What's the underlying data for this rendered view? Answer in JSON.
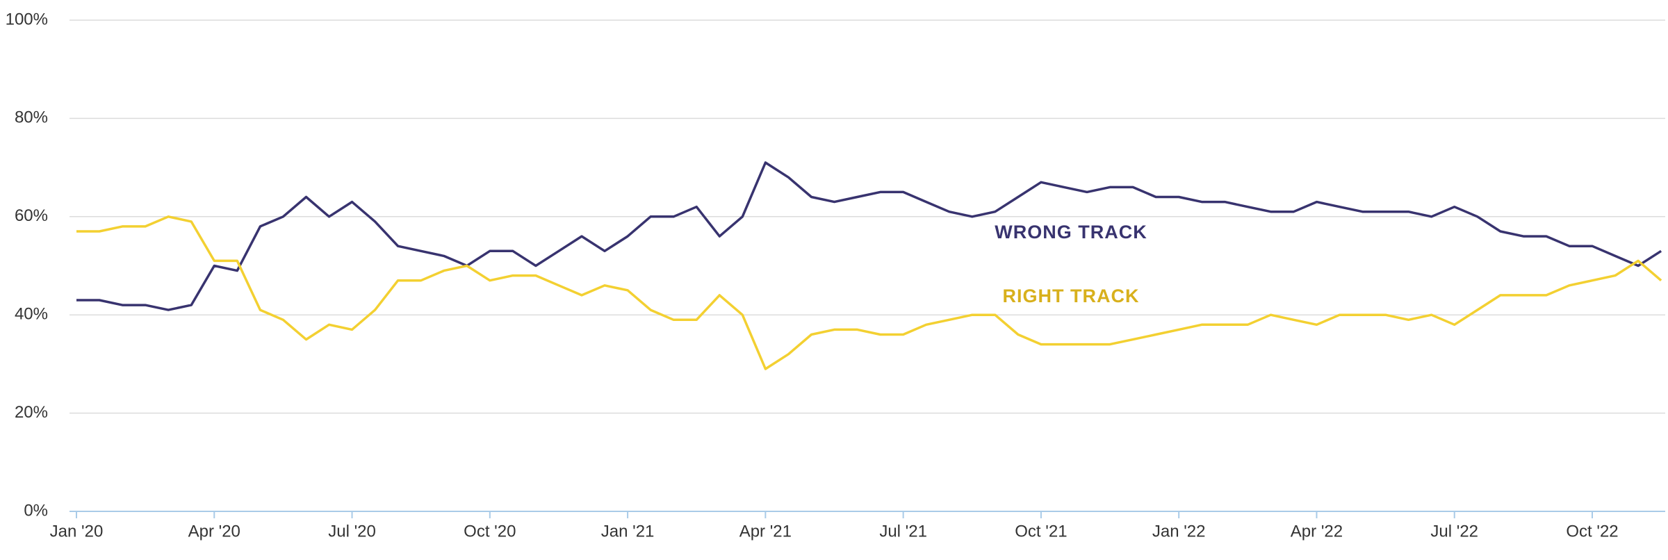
{
  "chart_data": {
    "type": "line",
    "categories": [
      "Jan '20",
      null,
      null,
      null,
      null,
      null,
      "Apr '20",
      null,
      null,
      null,
      null,
      null,
      "Jul '20",
      null,
      null,
      null,
      null,
      null,
      "Oct '20",
      null,
      null,
      null,
      null,
      null,
      "Jan '21",
      null,
      null,
      null,
      null,
      null,
      "Apr '21",
      null,
      null,
      null,
      null,
      null,
      "Jul '21",
      null,
      null,
      null,
      null,
      null,
      "Oct '21",
      null,
      null,
      null,
      null,
      null,
      "Jan '22",
      null,
      null,
      null,
      null,
      null,
      "Apr '22",
      null,
      null,
      null,
      null,
      null,
      "Jul '22",
      null,
      null,
      null,
      null,
      null,
      "Oct '22",
      null,
      null,
      null
    ],
    "series": [
      {
        "name": "WRONG TRACK",
        "color": "#38336f",
        "values": [
          43,
          43,
          42,
          42,
          41,
          42,
          50,
          49,
          58,
          60,
          64,
          60,
          63,
          59,
          54,
          53,
          52,
          50,
          53,
          53,
          50,
          53,
          56,
          53,
          56,
          60,
          60,
          62,
          56,
          60,
          71,
          68,
          64,
          63,
          64,
          65,
          65,
          63,
          61,
          60,
          61,
          64,
          67,
          66,
          65,
          66,
          66,
          64,
          64,
          63,
          63,
          62,
          61,
          61,
          63,
          62,
          61,
          61,
          61,
          60,
          62,
          60,
          57,
          56,
          56,
          54,
          54,
          52,
          50,
          53
        ]
      },
      {
        "name": "RIGHT TRACK",
        "color": "#f3d031",
        "values": [
          57,
          57,
          58,
          58,
          60,
          59,
          51,
          51,
          41,
          39,
          35,
          38,
          37,
          41,
          47,
          47,
          49,
          50,
          47,
          48,
          48,
          46,
          44,
          46,
          45,
          41,
          39,
          39,
          44,
          40,
          29,
          32,
          36,
          37,
          37,
          36,
          36,
          38,
          39,
          40,
          40,
          36,
          34,
          34,
          34,
          34,
          35,
          36,
          37,
          38,
          38,
          38,
          40,
          39,
          38,
          40,
          40,
          40,
          39,
          40,
          38,
          41,
          44,
          44,
          44,
          46,
          47,
          48,
          51,
          47
        ]
      }
    ],
    "annotations": [
      {
        "text": "WRONG TRACK",
        "color": "#38336f"
      },
      {
        "text": "RIGHT TRACK",
        "color": "#d8b01c"
      }
    ],
    "ylim": [
      0,
      100
    ],
    "yticks": [
      {
        "value": 0,
        "label": "0%"
      },
      {
        "value": 20,
        "label": "20%"
      },
      {
        "value": 40,
        "label": "40%"
      },
      {
        "value": 60,
        "label": "60%"
      },
      {
        "value": 80,
        "label": "80%"
      },
      {
        "value": 100,
        "label": "100%"
      }
    ],
    "grid": true
  }
}
